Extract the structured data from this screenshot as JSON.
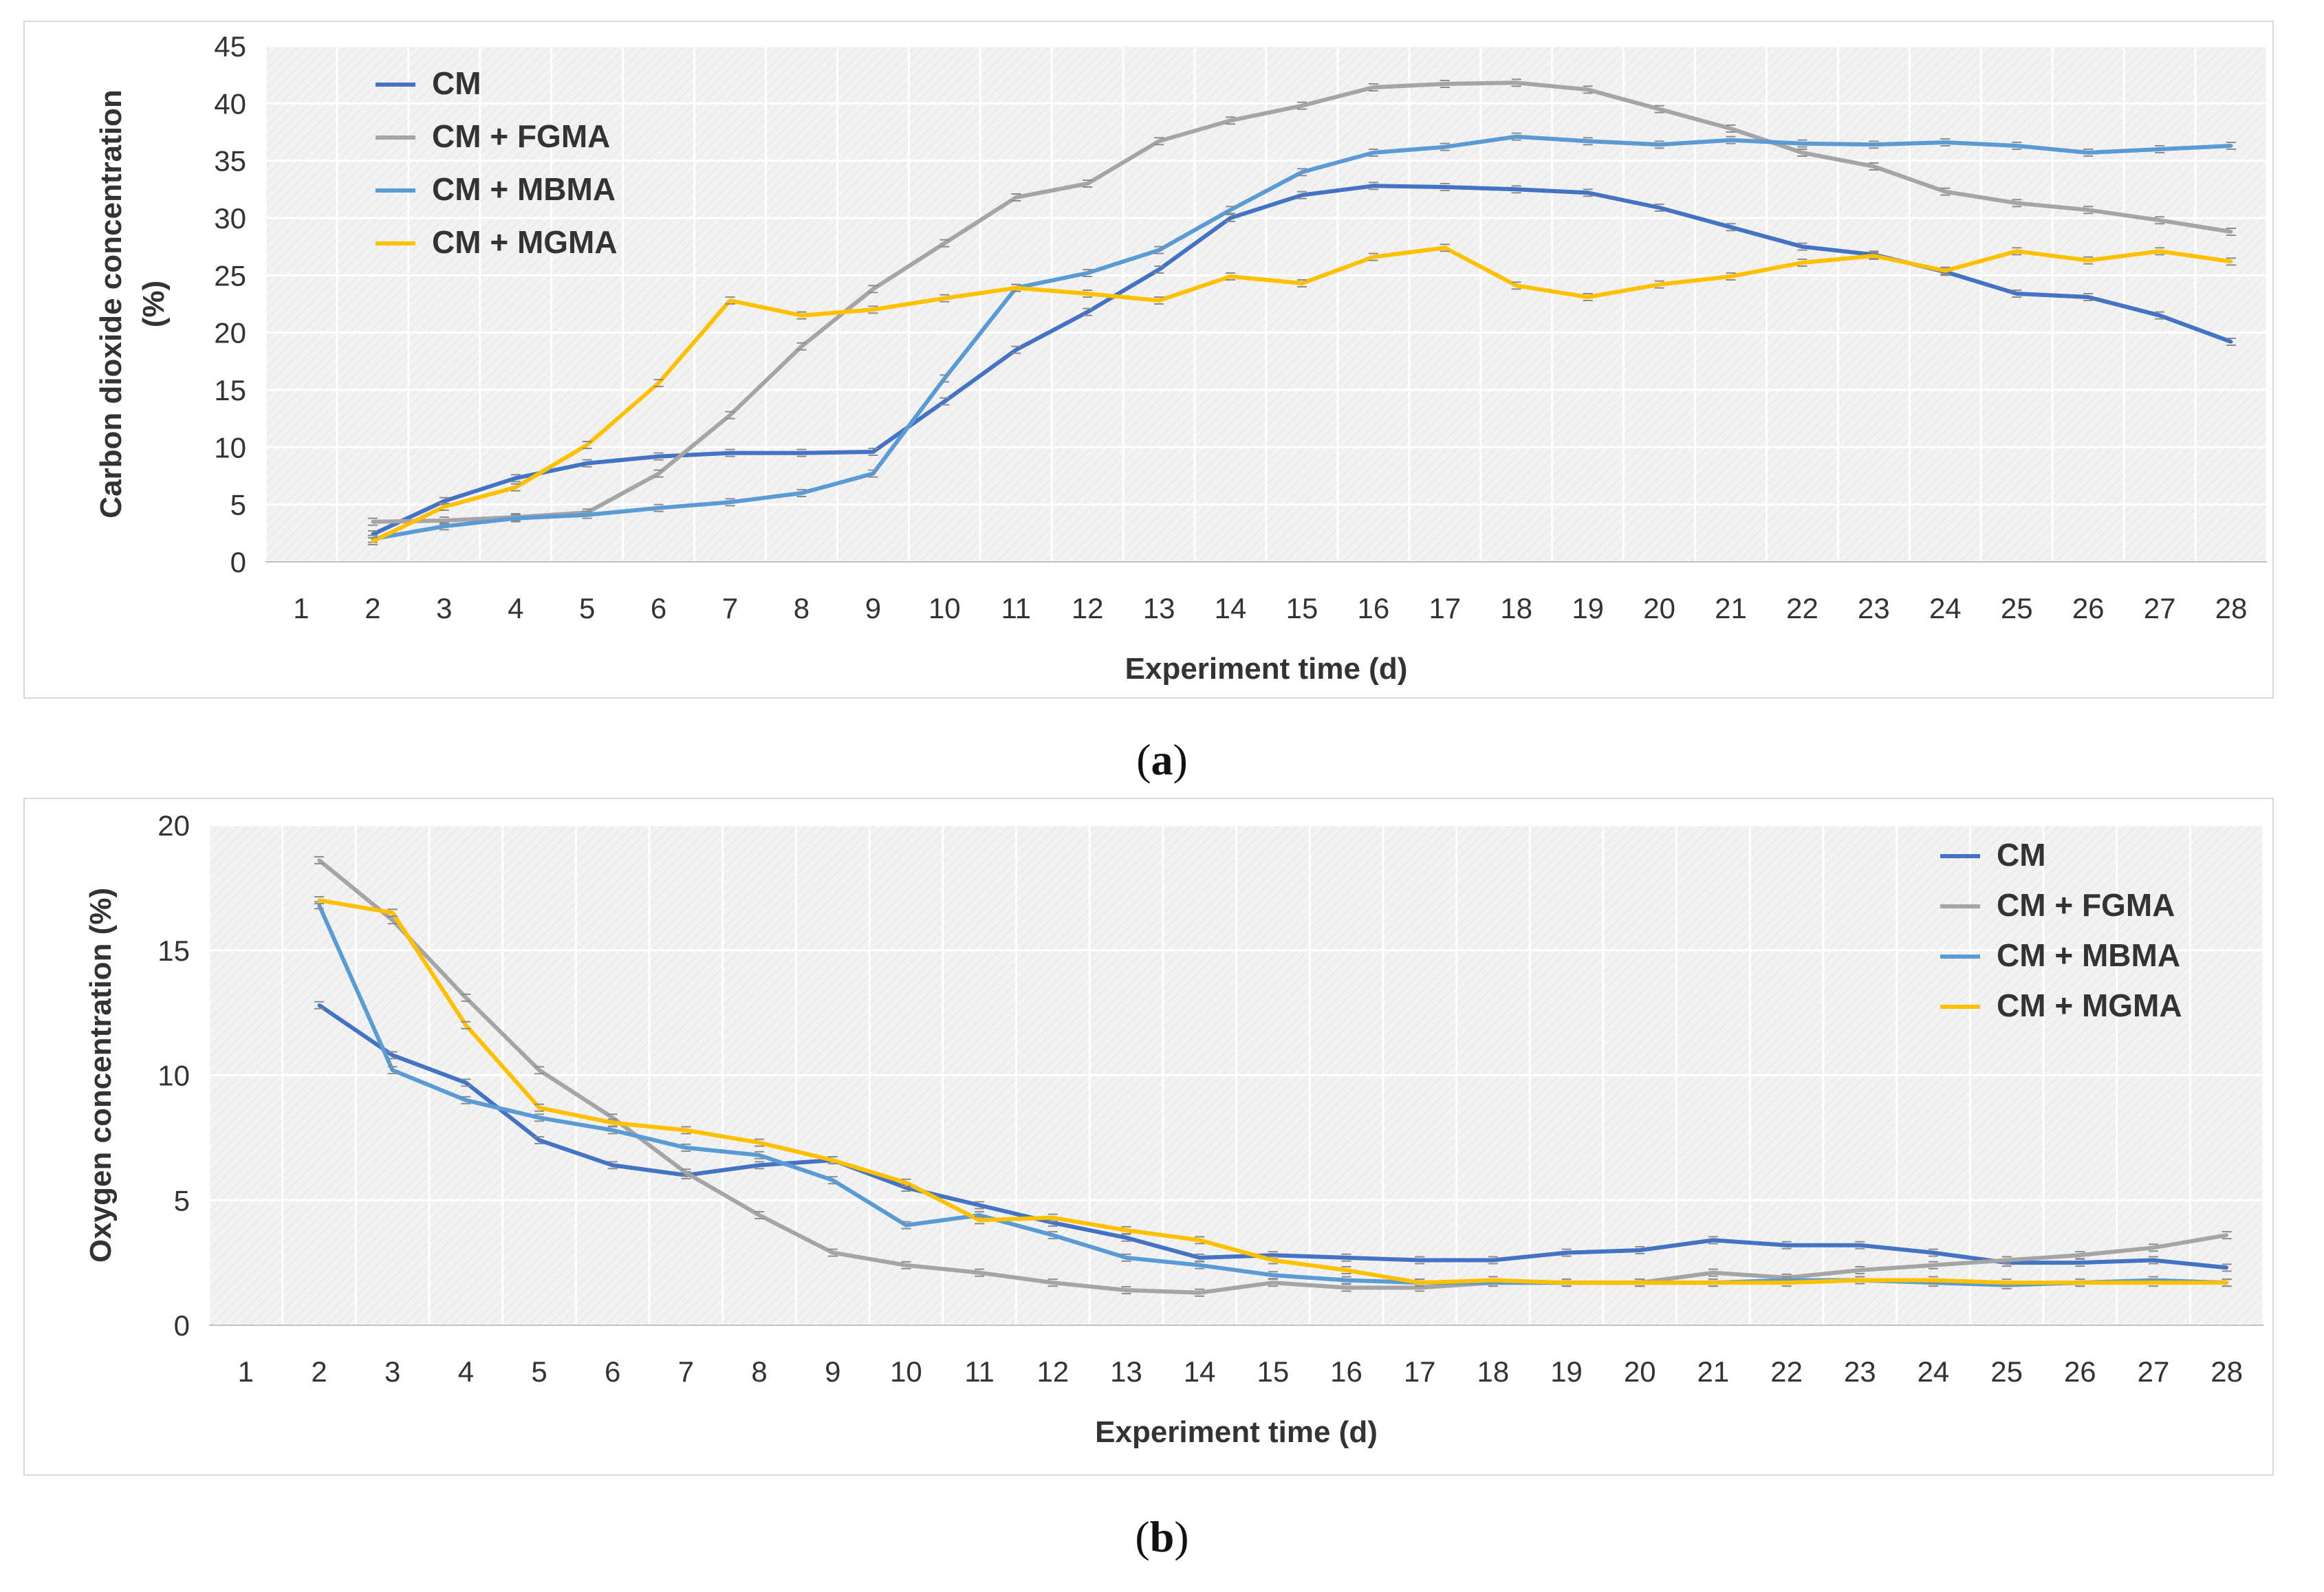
{
  "captions": {
    "a_open": "(",
    "a_letter": "a",
    "a_close": ")",
    "b_open": "(",
    "b_letter": "b",
    "b_close": ")"
  },
  "chart_data": [
    {
      "type": "line",
      "id": "a",
      "title": "",
      "xlabel": "Experiment time (d)",
      "ylabel_lines": [
        "Carbon dioxide concentration",
        "(%)"
      ],
      "x": [
        1,
        2,
        3,
        4,
        5,
        6,
        7,
        8,
        9,
        10,
        11,
        12,
        13,
        14,
        15,
        16,
        17,
        18,
        19,
        20,
        21,
        22,
        23,
        24,
        25,
        26,
        27,
        28
      ],
      "ylim": [
        0,
        45
      ],
      "yticks": [
        0,
        5,
        10,
        15,
        20,
        25,
        30,
        35,
        40,
        45
      ],
      "grid": true,
      "legend_position": "top-left",
      "series": [
        {
          "name": "CM",
          "color": "#4472C4",
          "values": [
            null,
            2.4,
            5.3,
            7.3,
            8.6,
            9.2,
            9.5,
            9.5,
            9.6,
            14.0,
            18.5,
            21.8,
            25.5,
            30.0,
            32.0,
            32.8,
            32.7,
            32.5,
            32.2,
            30.9,
            29.2,
            27.5,
            26.8,
            25.3,
            23.4,
            23.1,
            21.5,
            19.2
          ]
        },
        {
          "name": "CM + FGMA",
          "color": "#A5A5A5",
          "values": [
            null,
            3.5,
            3.6,
            3.9,
            4.3,
            7.7,
            12.8,
            18.8,
            23.8,
            27.8,
            31.8,
            33.0,
            36.7,
            38.5,
            39.8,
            41.4,
            41.7,
            41.8,
            41.2,
            39.5,
            37.8,
            35.7,
            34.5,
            32.3,
            31.3,
            30.7,
            29.8,
            28.8
          ]
        },
        {
          "name": "CM + MBMA",
          "color": "#5B9BD5",
          "values": [
            null,
            2.0,
            3.1,
            3.8,
            4.1,
            4.7,
            5.2,
            6.0,
            7.7,
            16.0,
            23.9,
            25.2,
            27.2,
            30.7,
            34.0,
            35.7,
            36.2,
            37.1,
            36.7,
            36.4,
            36.8,
            36.5,
            36.4,
            36.6,
            36.3,
            35.7,
            36.0,
            36.3
          ]
        },
        {
          "name": "CM + MGMA",
          "color": "#FFC000",
          "values": [
            null,
            1.8,
            4.8,
            6.5,
            10.2,
            15.6,
            22.8,
            21.5,
            22.0,
            23.0,
            23.9,
            23.4,
            22.8,
            24.9,
            24.3,
            26.6,
            27.4,
            24.1,
            23.1,
            24.2,
            24.9,
            26.1,
            26.7,
            25.4,
            27.1,
            26.3,
            27.1,
            26.2
          ]
        }
      ]
    },
    {
      "type": "line",
      "id": "b",
      "title": "",
      "xlabel": "Experiment time (d)",
      "ylabel_lines": [
        "Oxygen concentration (%)"
      ],
      "x": [
        1,
        2,
        3,
        4,
        5,
        6,
        7,
        8,
        9,
        10,
        11,
        12,
        13,
        14,
        15,
        16,
        17,
        18,
        19,
        20,
        21,
        22,
        23,
        24,
        25,
        26,
        27,
        28
      ],
      "ylim": [
        0,
        20
      ],
      "yticks": [
        0,
        5,
        10,
        15,
        20
      ],
      "grid": true,
      "legend_position": "top-right",
      "series": [
        {
          "name": "CM",
          "color": "#4472C4",
          "values": [
            null,
            12.8,
            10.8,
            9.7,
            7.4,
            6.4,
            6.0,
            6.4,
            6.6,
            5.5,
            4.8,
            4.1,
            3.5,
            2.7,
            2.8,
            2.7,
            2.6,
            2.6,
            2.9,
            3.0,
            3.4,
            3.2,
            3.2,
            2.9,
            2.5,
            2.5,
            2.6,
            2.3
          ]
        },
        {
          "name": "CM + FGMA",
          "color": "#A5A5A5",
          "values": [
            null,
            18.6,
            16.2,
            13.1,
            10.2,
            8.3,
            6.1,
            4.4,
            2.9,
            2.4,
            2.1,
            1.7,
            1.4,
            1.3,
            1.7,
            1.5,
            1.5,
            1.7,
            1.7,
            1.7,
            2.1,
            1.9,
            2.2,
            2.4,
            2.6,
            2.8,
            3.1,
            3.6
          ]
        },
        {
          "name": "CM + MBMA",
          "color": "#5B9BD5",
          "values": [
            null,
            16.8,
            10.2,
            9.0,
            8.3,
            7.8,
            7.1,
            6.8,
            5.8,
            4.0,
            4.4,
            3.6,
            2.7,
            2.4,
            2.0,
            1.8,
            1.7,
            1.7,
            1.7,
            1.7,
            1.7,
            1.8,
            1.8,
            1.7,
            1.6,
            1.7,
            1.8,
            1.7
          ]
        },
        {
          "name": "CM + MGMA",
          "color": "#FFC000",
          "values": [
            null,
            17.0,
            16.5,
            12.0,
            8.7,
            8.1,
            7.8,
            7.3,
            6.6,
            5.7,
            4.2,
            4.3,
            3.8,
            3.4,
            2.6,
            2.2,
            1.7,
            1.8,
            1.7,
            1.7,
            1.7,
            1.7,
            1.8,
            1.8,
            1.7,
            1.7,
            1.7,
            1.7
          ]
        }
      ]
    }
  ]
}
